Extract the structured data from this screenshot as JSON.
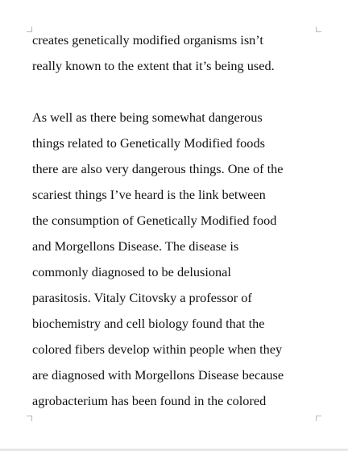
{
  "document": {
    "paragraph1": [
      "creates genetically modified organisms isn’t",
      "really known to the extent that it’s being used."
    ],
    "paragraph2": [
      "As well as there being somewhat dangerous",
      "things related to Genetically Modified foods",
      "there are also very dangerous things. One of the",
      "scariest things I’ve heard is the link between",
      "the consumption of Genetically Modified food",
      "and Morgellons Disease. The disease is",
      "commonly diagnosed to be delusional",
      "parasitosis. Vitaly Citovsky a professor of",
      "biochemistry and cell biology found that the",
      "colored fibers develop within people when they",
      "are diagnosed with Morgellons Disease because",
      "agrobacterium has been found in the colored"
    ]
  }
}
